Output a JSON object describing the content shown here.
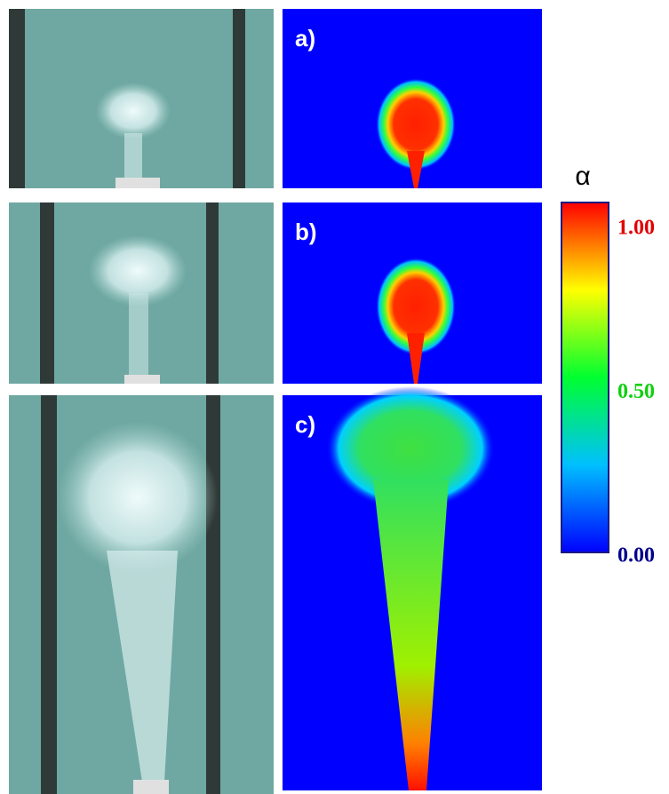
{
  "panels": [
    {
      "label": "a)"
    },
    {
      "label": "b)"
    },
    {
      "label": "c)"
    }
  ],
  "colorbar": {
    "title": "α",
    "range": [
      0,
      1
    ],
    "ticks": [
      {
        "value": 1,
        "label": "1.00"
      },
      {
        "value": 0.5,
        "label": "0.50"
      },
      {
        "value": 0,
        "label": "0.00"
      }
    ]
  }
}
